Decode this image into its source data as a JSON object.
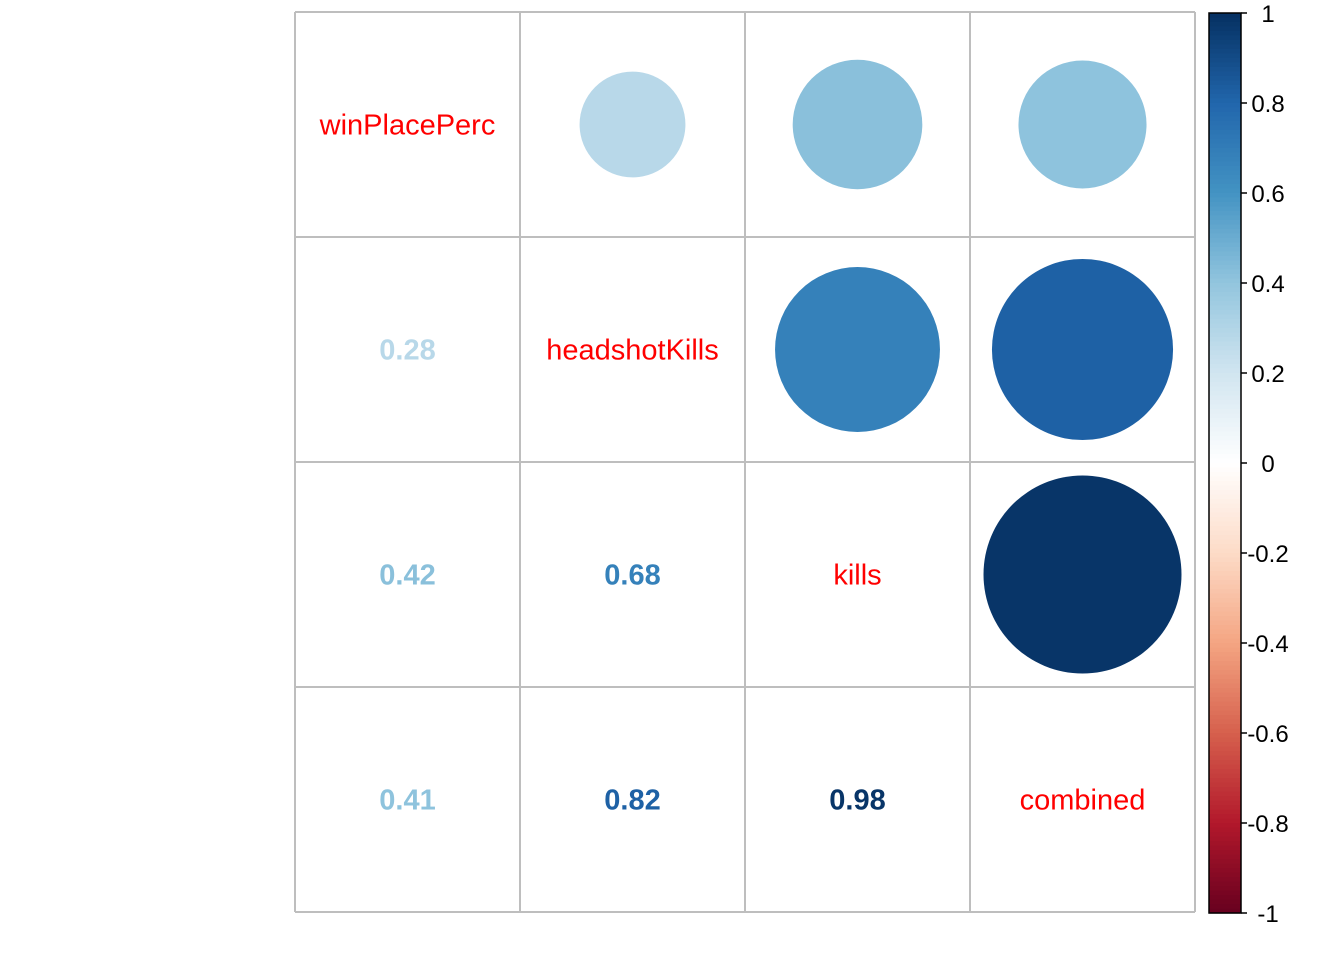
{
  "chart_data": {
    "type": "heatmap",
    "variables": [
      "winPlacePerc",
      "headshotKills",
      "kills",
      "combined"
    ],
    "matrix": [
      [
        1.0,
        0.28,
        0.42,
        0.41
      ],
      [
        0.28,
        1.0,
        0.68,
        0.82
      ],
      [
        0.42,
        0.68,
        1.0,
        0.98
      ],
      [
        0.41,
        0.82,
        0.98,
        1.0
      ]
    ],
    "value_labels": [
      {
        "row": 1,
        "col": 0,
        "text": "0.28"
      },
      {
        "row": 2,
        "col": 0,
        "text": "0.42"
      },
      {
        "row": 2,
        "col": 1,
        "text": "0.68"
      },
      {
        "row": 3,
        "col": 0,
        "text": "0.41"
      },
      {
        "row": 3,
        "col": 1,
        "text": "0.82"
      },
      {
        "row": 3,
        "col": 2,
        "text": "0.98"
      }
    ],
    "upper_method": "circle",
    "lower_method": "number",
    "diagonal_label_color": "#ff0000",
    "colorbar": {
      "range": [
        -1,
        1
      ],
      "ticks": [
        "1",
        "0.8",
        "0.6",
        "0.4",
        "0.2",
        "0",
        "-0.2",
        "-0.4",
        "-0.6",
        "-0.8",
        "-1"
      ],
      "tick_values": [
        1,
        0.8,
        0.6,
        0.4,
        0.2,
        0,
        -0.2,
        -0.4,
        -0.6,
        -0.8,
        -1
      ]
    },
    "palette": [
      "#67001F",
      "#B2182B",
      "#D6604D",
      "#F4A582",
      "#FDDBC7",
      "#FFFFFF",
      "#D1E5F0",
      "#92C5DE",
      "#4393C3",
      "#2166AC",
      "#053061"
    ],
    "grid_color": "#bebebe"
  }
}
